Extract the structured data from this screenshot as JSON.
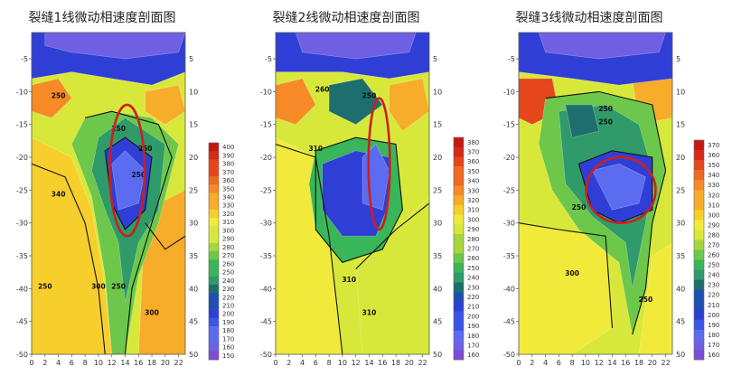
{
  "chart_data": [
    {
      "type": "heatmap",
      "title": "裂缝1线微动相速度剖面图",
      "x_ticks": [
        "0",
        "2",
        "4",
        "6",
        "8",
        "10",
        "12",
        "14",
        "16",
        "18",
        "20",
        "22"
      ],
      "y_ticks": [
        "-5",
        "-10",
        "-15",
        "-20",
        "-25",
        "-30",
        "-35",
        "-40",
        "-45",
        "-50"
      ],
      "xlim": [
        0,
        23
      ],
      "ylim": [
        -50,
        -1
      ],
      "colorbar": [
        "400",
        "390",
        "380",
        "370",
        "360",
        "350",
        "340",
        "330",
        "320",
        "310",
        "300",
        "290",
        "280",
        "270",
        "260",
        "250",
        "240",
        "230",
        "220",
        "210",
        "200",
        "190",
        "180",
        "170",
        "160",
        "150"
      ],
      "contour_labels": [
        "250",
        "250",
        "250",
        "250",
        "340",
        "300",
        "250",
        "300",
        "250"
      ],
      "anomaly_ellipse": {
        "cx": 14.3,
        "cy": -22,
        "rx": 2.6,
        "ry": 10
      }
    },
    {
      "type": "heatmap",
      "title": "裂缝2线微动相速度剖面图",
      "x_ticks": [
        "0",
        "2",
        "4",
        "6",
        "8",
        "10",
        "12",
        "14",
        "16",
        "18",
        "20",
        "22"
      ],
      "y_ticks": [
        "-5",
        "-10",
        "-15",
        "-20",
        "-25",
        "-30",
        "-35",
        "-40",
        "-45",
        "-50"
      ],
      "xlim": [
        0,
        23
      ],
      "ylim": [
        -50,
        -1
      ],
      "colorbar": [
        "380",
        "370",
        "360",
        "350",
        "340",
        "330",
        "320",
        "310",
        "300",
        "290",
        "280",
        "270",
        "260",
        "250",
        "240",
        "230",
        "220",
        "210",
        "200",
        "190",
        "180",
        "170",
        "160"
      ],
      "contour_labels": [
        "260",
        "250",
        "310",
        "310",
        "310"
      ],
      "anomaly_ellipse": {
        "cx": 15.5,
        "cy": -21,
        "rx": 1.6,
        "ry": 10
      }
    },
    {
      "type": "heatmap",
      "title": "裂缝3线微动相速度剖面图",
      "x_ticks": [
        "0",
        "2",
        "4",
        "6",
        "8",
        "10",
        "12",
        "14",
        "16",
        "18",
        "20",
        "22"
      ],
      "y_ticks": [
        "-5",
        "-10",
        "-15",
        "-20",
        "-25",
        "-30",
        "-35",
        "-40",
        "-45",
        "-50"
      ],
      "xlim": [
        0,
        23
      ],
      "ylim": [
        -50,
        -1
      ],
      "colorbar": [
        "370",
        "360",
        "350",
        "340",
        "330",
        "320",
        "310",
        "300",
        "290",
        "280",
        "270",
        "260",
        "250",
        "240",
        "230",
        "220",
        "210",
        "200",
        "190",
        "180",
        "170",
        "160"
      ],
      "contour_labels": [
        "250",
        "250",
        "250",
        "300",
        "250"
      ],
      "anomaly_ellipse": {
        "cx": 15.3,
        "cy": -25,
        "rx": 5.2,
        "ry": 5
      }
    }
  ],
  "colors": {
    "ellipse": "#cc1f1f",
    "contour": "#111111",
    "palette": [
      "#7b4dd6",
      "#6f60e3",
      "#5b6cf0",
      "#3d55e6",
      "#2f3fd6",
      "#1f4fb3",
      "#1c6f6d",
      "#2f9a6a",
      "#39b55a",
      "#6cc74a",
      "#a6d63c",
      "#d8e83a",
      "#f2ea3a",
      "#f6cf2d",
      "#f7ac2a",
      "#f58a26",
      "#ef6a22",
      "#e5461c",
      "#d62a17",
      "#c31913"
    ]
  }
}
